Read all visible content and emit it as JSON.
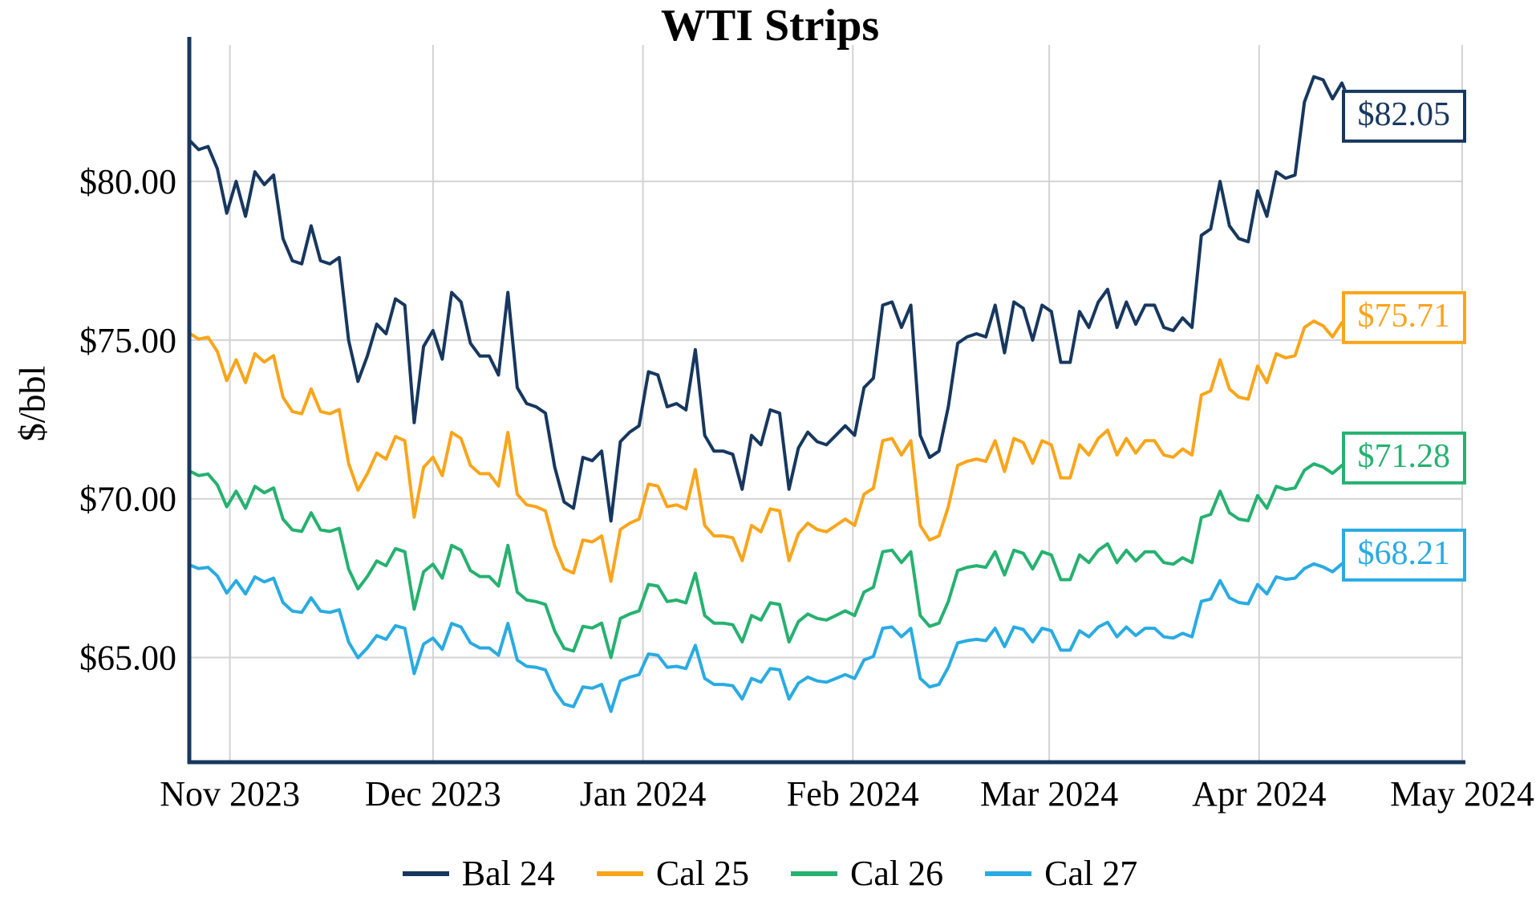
{
  "chart_data": {
    "type": "line",
    "title": "WTI Strips",
    "ylabel": "$/bbl",
    "grid": true,
    "legend_position": "bottom",
    "colors": {
      "grid": "#d3d3d3",
      "axis": "#17375e"
    },
    "ylim": [
      61.7,
      84.3
    ],
    "y_ticks": [
      65,
      70,
      75,
      80
    ],
    "y_tick_labels": [
      "$65.00",
      "$70.00",
      "$75.00",
      "$80.00"
    ],
    "x_tick_labels": [
      "Nov 2023",
      "Dec 2023",
      "Jan 2024",
      "Feb 2024",
      "Mar 2024",
      "Apr 2024",
      "May 2024"
    ],
    "x_tick_days": [
      6,
      36,
      67,
      98,
      127,
      158,
      188
    ],
    "x_domain_days": [
      0,
      188
    ],
    "day_per_point": 1.384,
    "series": [
      {
        "name": "Bal 24",
        "color": "#17375e",
        "end_label": "$82.05",
        "values": [
          81.3,
          81.0,
          81.1,
          80.4,
          79.0,
          80.0,
          78.9,
          80.3,
          79.9,
          80.2,
          78.2,
          77.5,
          77.4,
          78.6,
          77.5,
          77.4,
          77.6,
          75.0,
          73.7,
          74.5,
          75.5,
          75.2,
          76.3,
          76.1,
          72.4,
          74.8,
          75.3,
          74.4,
          76.5,
          76.2,
          74.9,
          74.5,
          74.5,
          73.9,
          76.5,
          73.5,
          73.0,
          72.9,
          72.7,
          71.0,
          69.9,
          69.7,
          71.3,
          71.2,
          71.5,
          69.3,
          71.8,
          72.1,
          72.3,
          74.0,
          73.9,
          72.9,
          73.0,
          72.8,
          74.7,
          72.0,
          71.5,
          71.5,
          71.4,
          70.3,
          72.0,
          71.7,
          72.8,
          72.7,
          70.3,
          71.6,
          72.1,
          71.8,
          71.7,
          72.0,
          72.3,
          72.0,
          73.5,
          73.8,
          76.1,
          76.2,
          75.4,
          76.1,
          72.0,
          71.3,
          71.5,
          72.9,
          74.9,
          75.1,
          75.2,
          75.1,
          76.1,
          74.6,
          76.2,
          76.0,
          75.0,
          76.1,
          75.9,
          74.3,
          74.3,
          75.9,
          75.4,
          76.2,
          76.6,
          75.4,
          76.2,
          75.5,
          76.1,
          76.1,
          75.4,
          75.3,
          75.7,
          75.4,
          78.3,
          78.5,
          80.0,
          78.6,
          78.2,
          78.1,
          79.7,
          78.9,
          80.3,
          80.1,
          80.2,
          82.5,
          83.3,
          83.2,
          82.6,
          83.1,
          82.4,
          82.05
        ]
      },
      {
        "name": "Cal 25",
        "color": "#f9a51b",
        "end_label": "$75.71",
        "values": [
          75.22,
          75.03,
          75.09,
          74.64,
          73.72,
          74.38,
          73.66,
          74.57,
          74.31,
          74.51,
          73.2,
          72.75,
          72.68,
          73.46,
          72.75,
          72.68,
          72.81,
          71.12,
          70.27,
          70.79,
          71.44,
          71.25,
          71.96,
          71.83,
          69.42,
          70.99,
          71.31,
          70.73,
          72.09,
          71.9,
          71.05,
          70.79,
          70.79,
          70.4,
          72.09,
          70.14,
          69.81,
          69.75,
          69.62,
          68.51,
          67.79,
          67.66,
          68.7,
          68.64,
          68.83,
          67.4,
          69.03,
          69.23,
          69.36,
          70.46,
          70.4,
          69.75,
          69.81,
          69.68,
          70.92,
          69.16,
          68.83,
          68.83,
          68.77,
          68.05,
          69.16,
          68.96,
          69.68,
          69.62,
          68.05,
          68.9,
          69.23,
          69.03,
          68.96,
          69.16,
          69.36,
          69.16,
          70.14,
          70.33,
          71.83,
          71.9,
          71.38,
          71.83,
          69.16,
          68.7,
          68.83,
          69.75,
          71.05,
          71.18,
          71.25,
          71.18,
          71.83,
          70.86,
          71.9,
          71.77,
          71.12,
          71.83,
          71.7,
          70.66,
          70.66,
          71.7,
          71.38,
          71.9,
          72.16,
          71.38,
          71.9,
          71.44,
          71.83,
          71.83,
          71.38,
          71.31,
          71.57,
          71.38,
          73.27,
          73.4,
          74.38,
          73.46,
          73.2,
          73.14,
          74.18,
          73.66,
          74.57,
          74.44,
          74.51,
          75.4,
          75.6,
          75.45,
          75.1,
          75.55,
          75.3,
          75.71
        ]
      },
      {
        "name": "Cal 26",
        "color": "#26b170",
        "end_label": "$71.28",
        "values": [
          70.88,
          70.73,
          70.78,
          70.44,
          69.75,
          70.24,
          69.7,
          70.39,
          70.19,
          70.34,
          69.36,
          69.02,
          68.97,
          69.56,
          69.02,
          68.97,
          69.07,
          67.79,
          67.16,
          67.55,
          68.04,
          67.89,
          68.43,
          68.33,
          66.52,
          67.7,
          67.94,
          67.5,
          68.53,
          68.38,
          67.74,
          67.55,
          67.55,
          67.25,
          68.53,
          67.06,
          66.81,
          66.76,
          66.67,
          65.83,
          65.29,
          65.2,
          65.98,
          65.93,
          66.08,
          65.0,
          66.23,
          66.37,
          66.47,
          67.3,
          67.25,
          66.76,
          66.81,
          66.72,
          67.65,
          66.32,
          66.08,
          66.08,
          66.03,
          65.49,
          66.32,
          66.18,
          66.72,
          66.67,
          65.49,
          66.13,
          66.37,
          66.23,
          66.18,
          66.32,
          66.47,
          66.32,
          67.06,
          67.21,
          68.33,
          68.38,
          67.99,
          68.33,
          66.32,
          65.98,
          66.08,
          66.76,
          67.74,
          67.84,
          67.89,
          67.84,
          68.33,
          67.6,
          68.38,
          68.28,
          67.79,
          68.33,
          68.23,
          67.45,
          67.45,
          68.23,
          67.99,
          68.38,
          68.58,
          67.99,
          68.38,
          68.04,
          68.33,
          68.33,
          67.99,
          67.94,
          68.14,
          67.99,
          69.41,
          69.51,
          70.24,
          69.56,
          69.36,
          69.31,
          70.1,
          69.7,
          70.39,
          70.29,
          70.34,
          70.9,
          71.1,
          71.0,
          70.8,
          71.05,
          70.95,
          71.28
        ]
      },
      {
        "name": "Cal 27",
        "color": "#29abe2",
        "end_label": "$68.21",
        "values": [
          67.92,
          67.8,
          67.84,
          67.57,
          67.03,
          67.42,
          67.0,
          67.54,
          67.38,
          67.5,
          66.73,
          66.46,
          66.42,
          66.88,
          66.46,
          66.42,
          66.5,
          65.49,
          64.99,
          65.3,
          65.69,
          65.57,
          66.0,
          65.92,
          64.49,
          65.42,
          65.61,
          65.26,
          66.07,
          65.96,
          65.46,
          65.3,
          65.3,
          65.07,
          66.07,
          64.92,
          64.72,
          64.69,
          64.61,
          63.95,
          63.53,
          63.45,
          64.07,
          64.03,
          64.15,
          63.3,
          64.26,
          64.38,
          64.46,
          65.11,
          65.07,
          64.69,
          64.72,
          64.65,
          65.38,
          64.34,
          64.15,
          64.15,
          64.11,
          63.69,
          64.34,
          64.22,
          64.65,
          64.61,
          63.69,
          64.19,
          64.38,
          64.26,
          64.22,
          64.34,
          64.46,
          64.34,
          64.92,
          65.03,
          65.92,
          65.96,
          65.65,
          65.92,
          64.34,
          64.07,
          64.15,
          64.69,
          65.46,
          65.53,
          65.57,
          65.53,
          65.92,
          65.34,
          65.96,
          65.88,
          65.49,
          65.92,
          65.84,
          65.23,
          65.23,
          65.84,
          65.65,
          65.96,
          66.11,
          65.65,
          65.96,
          65.69,
          65.92,
          65.92,
          65.65,
          65.61,
          65.76,
          65.65,
          66.77,
          66.84,
          67.42,
          66.88,
          66.73,
          66.69,
          67.3,
          67.0,
          67.54,
          67.46,
          67.5,
          67.8,
          67.95,
          67.85,
          67.7,
          67.95,
          68.0,
          68.21
        ]
      }
    ]
  }
}
